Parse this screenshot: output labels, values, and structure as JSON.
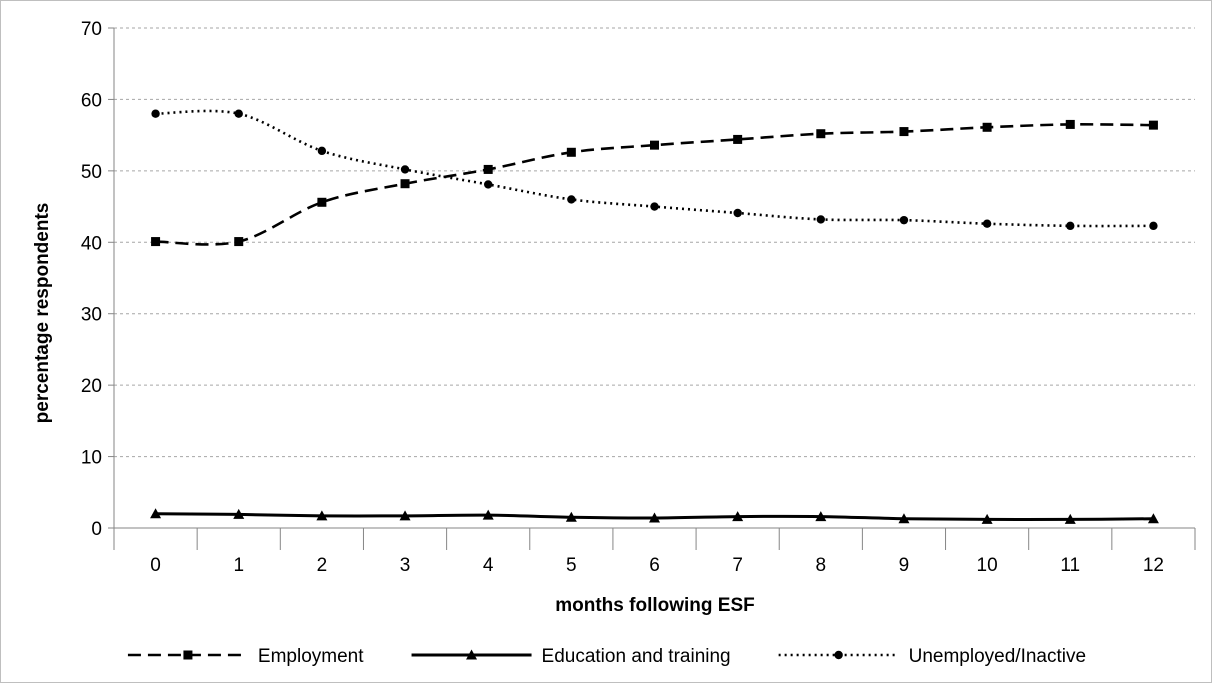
{
  "chart_data": {
    "type": "line",
    "title": "",
    "xlabel": "months following ESF",
    "ylabel": "percentage respondents",
    "categories": [
      "0",
      "1",
      "2",
      "3",
      "4",
      "5",
      "6",
      "7",
      "8",
      "9",
      "10",
      "11",
      "12"
    ],
    "ylim": [
      0,
      70
    ],
    "yticks": [
      0,
      10,
      20,
      30,
      40,
      50,
      60,
      70
    ],
    "grid": true,
    "legend_position": "bottom",
    "series": [
      {
        "name": "Employment",
        "style": "dashed",
        "marker": "square",
        "color": "#000000",
        "values": [
          40.1,
          40.1,
          45.6,
          48.2,
          50.2,
          52.6,
          53.6,
          54.4,
          55.2,
          55.5,
          56.1,
          56.5,
          56.4
        ]
      },
      {
        "name": "Education and training",
        "style": "solid",
        "marker": "triangle",
        "color": "#000000",
        "values": [
          2.0,
          1.9,
          1.7,
          1.7,
          1.8,
          1.5,
          1.4,
          1.6,
          1.6,
          1.3,
          1.2,
          1.2,
          1.3
        ]
      },
      {
        "name": "Unemployed/Inactive",
        "style": "dotted",
        "marker": "circle",
        "color": "#000000",
        "values": [
          58.0,
          58.0,
          52.8,
          50.2,
          48.1,
          46.0,
          45.0,
          44.1,
          43.2,
          43.1,
          42.6,
          42.3,
          42.3
        ]
      }
    ]
  }
}
